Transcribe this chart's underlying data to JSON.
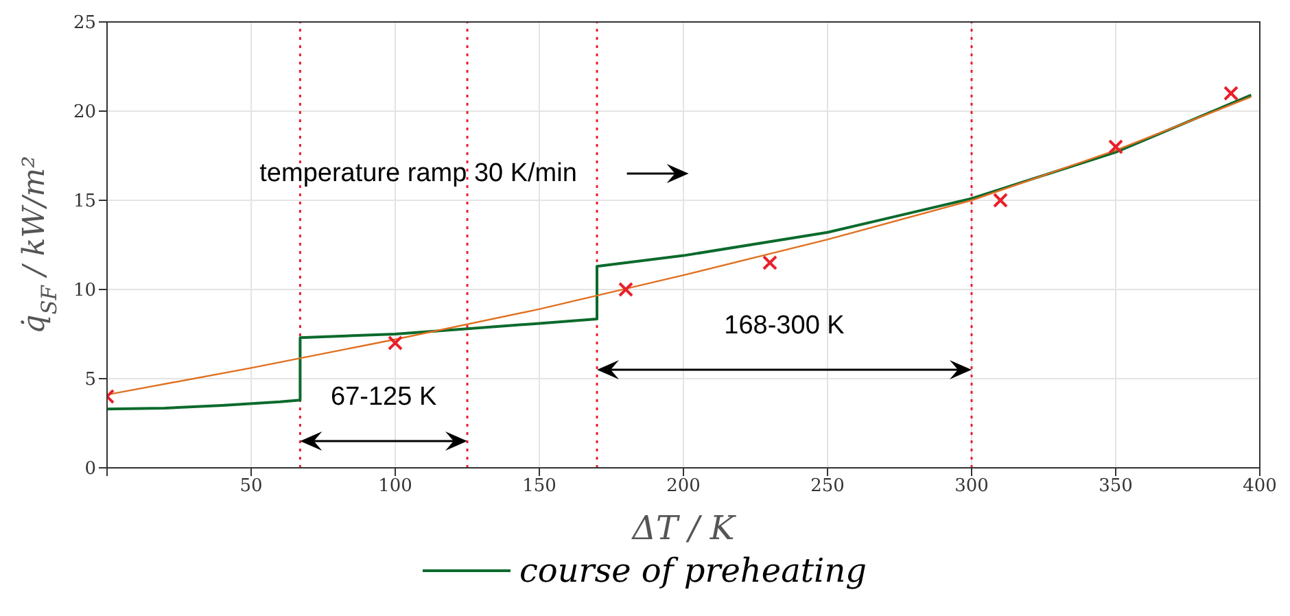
{
  "chart_data": {
    "type": "line",
    "xlabel": "ΔT / K",
    "ylabel": "q̇$_{SF}$ / kW/m²",
    "xlim": [
      0,
      400
    ],
    "ylim": [
      0,
      25
    ],
    "xticks": [
      {
        "value": 0,
        "label": null
      },
      50,
      100,
      150,
      200,
      250,
      300,
      350,
      400
    ],
    "yticks": [
      0,
      5,
      10,
      15,
      20,
      25
    ],
    "grid": true,
    "legend": "bottom",
    "series": [
      {
        "name": "course of preheating",
        "type": "line",
        "color": "#0b6a2c",
        "x": [
          0,
          20,
          40,
          60,
          67,
          67,
          100,
          125,
          150,
          170,
          170,
          200,
          250,
          300,
          350,
          397
        ],
        "values": [
          3.3,
          3.35,
          3.5,
          3.7,
          3.8,
          7.3,
          7.5,
          7.8,
          8.1,
          8.35,
          11.3,
          11.9,
          13.2,
          15.1,
          17.7,
          20.9
        ]
      },
      {
        "type": "line",
        "color": "#e07020",
        "x": [
          0,
          50,
          100,
          150,
          200,
          250,
          300,
          350,
          397
        ],
        "values": [
          4.1,
          5.6,
          7.2,
          8.9,
          10.8,
          12.8,
          15.0,
          17.8,
          20.8
        ]
      },
      {
        "type": "scatter",
        "color": "#e8202a",
        "marker": "cross",
        "x": [
          0,
          100,
          180,
          230,
          310,
          350,
          390
        ],
        "values": [
          4,
          7,
          10,
          11.5,
          15,
          18,
          21
        ]
      }
    ],
    "ref_lines": [
      {
        "axis": "x",
        "value": 67,
        "color": "#e8202a",
        "line_style": "dotted"
      },
      {
        "axis": "x",
        "value": 125,
        "color": "#e8202a",
        "line_style": "dotted"
      },
      {
        "axis": "x",
        "value": 170,
        "color": "#e8202a",
        "line_style": "dotted"
      },
      {
        "axis": "x",
        "value": 300,
        "color": "#e8202a",
        "line_style": "dotted"
      }
    ],
    "annotations": [
      "temperature ramp 30 K/min",
      "67-125 K",
      "168-300 K"
    ]
  }
}
